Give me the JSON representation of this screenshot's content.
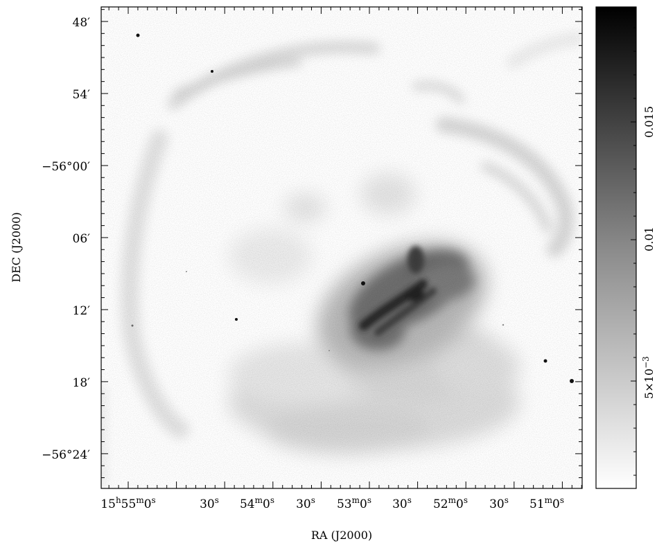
{
  "axes": {
    "xlabel": "RA (J2000)",
    "ylabel": "DEC (J2000)"
  },
  "y_ticks": [
    {
      "label": "48′"
    },
    {
      "label": "54′"
    },
    {
      "label": "−56°00′"
    },
    {
      "label": "06′"
    },
    {
      "label": "12′"
    },
    {
      "label": "18′"
    },
    {
      "label": "−56°24′"
    }
  ],
  "x_ticks": [
    {
      "label": "15h55m0s",
      "h": "15",
      "m": "55",
      "s": "0"
    },
    {
      "label": "30s",
      "s": "30"
    },
    {
      "label": "54m0s",
      "m": "54",
      "s": "0"
    },
    {
      "label": "30s",
      "s": "30"
    },
    {
      "label": "53m0s",
      "m": "53",
      "s": "0"
    },
    {
      "label": "30s",
      "s": "30"
    },
    {
      "label": "52m0s",
      "m": "52",
      "s": "0"
    },
    {
      "label": "30s",
      "s": "30"
    },
    {
      "label": "51m0s",
      "m": "51",
      "s": "0"
    }
  ],
  "colorbar": {
    "colormap": "grayscale, white (low) to black (high)",
    "ticks": [
      {
        "label": "0.015",
        "value": 0.015
      },
      {
        "label": "0.01",
        "value": 0.01
      },
      {
        "label": "5×10−3",
        "mantissa": "5×10",
        "exponent": "−3",
        "value": 0.005
      }
    ]
  }
}
